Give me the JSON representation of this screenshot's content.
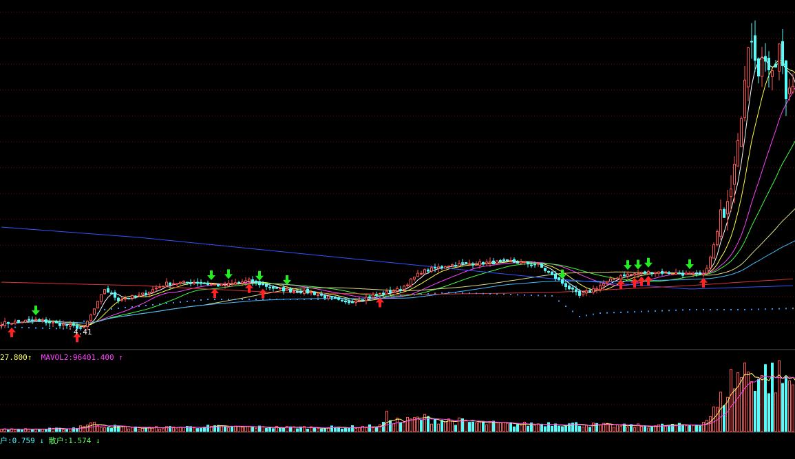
{
  "colors": {
    "up": "#ff5555",
    "down": "#54fcfc",
    "grid": "#7a1010",
    "ma5": "#ffffff",
    "ma10": "#ffff44",
    "ma20": "#ff44ff",
    "ma30": "#44ff44",
    "ma60": "#dddd88",
    "ma120": "#44bbff",
    "ma250": "#3355ff",
    "ma_red": "#dd3333",
    "buy_arrow": "#ff2222",
    "sell_arrow": "#22ee22",
    "dots": "#3399ff"
  },
  "price_label": "4.41",
  "volume_legend": {
    "mavol1": "27.800",
    "mavol1_arrow": "↑",
    "mavol2_label": "MAVOL2:",
    "mavol2_value": "96401.400",
    "mavol2_arrow": "↑"
  },
  "indicator_legend": {
    "item1_label": "户:",
    "item1_value": "0.759",
    "item1_arrow": "↓",
    "item2_label": "散户:",
    "item2_value": "1.574",
    "item2_arrow": "↓"
  },
  "chart_data": {
    "type": "candlestick",
    "ylim": [
      4.2,
      9.0
    ],
    "volume_ylim": [
      0,
      100
    ],
    "anchors": [
      [
        0,
        4.5
      ],
      [
        10,
        4.55
      ],
      [
        18,
        4.48
      ],
      [
        24,
        4.43
      ],
      [
        28,
        4.8
      ],
      [
        30,
        5.0
      ],
      [
        34,
        4.85
      ],
      [
        40,
        4.9
      ],
      [
        48,
        5.08
      ],
      [
        56,
        5.1
      ],
      [
        64,
        5.05
      ],
      [
        72,
        5.12
      ],
      [
        80,
        5.0
      ],
      [
        90,
        4.95
      ],
      [
        100,
        4.8
      ],
      [
        108,
        4.9
      ],
      [
        116,
        5.0
      ],
      [
        122,
        5.25
      ],
      [
        130,
        5.35
      ],
      [
        140,
        5.38
      ],
      [
        148,
        5.4
      ],
      [
        156,
        5.35
      ],
      [
        164,
        5.05
      ],
      [
        168,
        4.9
      ],
      [
        174,
        5.05
      ],
      [
        180,
        5.2
      ],
      [
        190,
        5.25
      ],
      [
        198,
        5.22
      ],
      [
        204,
        5.2
      ],
      [
        206,
        5.45
      ],
      [
        210,
        6.2
      ],
      [
        212,
        6.6
      ],
      [
        214,
        7.3
      ],
      [
        216,
        8.0
      ],
      [
        218,
        8.7
      ],
      [
        220,
        8.2
      ],
      [
        222,
        8.4
      ],
      [
        224,
        8.0
      ],
      [
        226,
        8.5
      ],
      [
        228,
        7.8
      ],
      [
        230,
        8.1
      ],
      [
        231,
        8.0
      ]
    ],
    "volume_anchors": [
      [
        0,
        3
      ],
      [
        20,
        4
      ],
      [
        26,
        12
      ],
      [
        30,
        8
      ],
      [
        40,
        5
      ],
      [
        60,
        7
      ],
      [
        80,
        6
      ],
      [
        100,
        6
      ],
      [
        110,
        8
      ],
      [
        112,
        22
      ],
      [
        116,
        14
      ],
      [
        122,
        20
      ],
      [
        130,
        16
      ],
      [
        140,
        12
      ],
      [
        150,
        10
      ],
      [
        160,
        12
      ],
      [
        170,
        10
      ],
      [
        180,
        8
      ],
      [
        200,
        9
      ],
      [
        204,
        14
      ],
      [
        208,
        35
      ],
      [
        212,
        75
      ],
      [
        216,
        90
      ],
      [
        220,
        85
      ],
      [
        226,
        80
      ],
      [
        231,
        70
      ]
    ],
    "buy_signals": [
      3,
      22,
      62,
      72,
      76,
      110,
      180,
      184,
      186,
      188,
      204
    ],
    "sell_signals": [
      10,
      61,
      66,
      75,
      83,
      163,
      182,
      185,
      188,
      200
    ],
    "series": [
      {
        "period": 5,
        "color": "ma5"
      },
      {
        "period": 10,
        "color": "ma10"
      },
      {
        "period": 20,
        "color": "ma20"
      },
      {
        "period": 30,
        "color": "ma30"
      },
      {
        "period": 60,
        "color": "ma60"
      },
      {
        "period": 120,
        "color": "ma120"
      }
    ],
    "extra_lines": {
      "ma250": [
        [
          0,
          5.9
        ],
        [
          40,
          5.75
        ],
        [
          80,
          5.55
        ],
        [
          120,
          5.35
        ],
        [
          160,
          5.15
        ],
        [
          200,
          5.0
        ],
        [
          231,
          5.05
        ]
      ],
      "ma_red": [
        [
          0,
          5.1
        ],
        [
          40,
          5.05
        ],
        [
          80,
          4.95
        ],
        [
          120,
          4.92
        ],
        [
          160,
          4.95
        ],
        [
          200,
          5.05
        ],
        [
          215,
          5.1
        ],
        [
          231,
          5.15
        ]
      ],
      "dots": [
        [
          0,
          4.45
        ],
        [
          20,
          4.42
        ],
        [
          30,
          4.7
        ],
        [
          60,
          4.85
        ],
        [
          100,
          4.85
        ],
        [
          130,
          4.95
        ],
        [
          160,
          4.9
        ],
        [
          168,
          4.6
        ],
        [
          174,
          4.65
        ],
        [
          190,
          4.68
        ],
        [
          200,
          4.7
        ],
        [
          216,
          4.7
        ],
        [
          231,
          4.72
        ]
      ]
    }
  }
}
